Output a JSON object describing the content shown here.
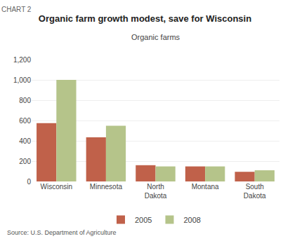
{
  "chart_data": {
    "type": "bar",
    "title": "Organic farm growth modest, save for Wisconsin",
    "subtitle": "Organic farms",
    "annotations": [
      "CHART 2",
      "Source: U.S. Department of Agriculture"
    ],
    "categories": [
      "Wisconsin",
      "Minnesota",
      "North\nDakota",
      "Montana",
      "South\nDakota"
    ],
    "series": [
      {
        "name": "2005",
        "color": "#c0614a",
        "values": [
          575,
          435,
          160,
          148,
          95
        ]
      },
      {
        "name": "2008",
        "color": "#b5c48a",
        "values": [
          1000,
          548,
          148,
          148,
          110
        ]
      }
    ],
    "ylim": [
      0,
      1200
    ],
    "yticks": [
      0,
      200,
      400,
      600,
      800,
      {
        "value": 1000,
        "label": "1,000"
      },
      {
        "value": 1200,
        "label": "1,200"
      }
    ],
    "grid": true,
    "legend": "bottom"
  }
}
